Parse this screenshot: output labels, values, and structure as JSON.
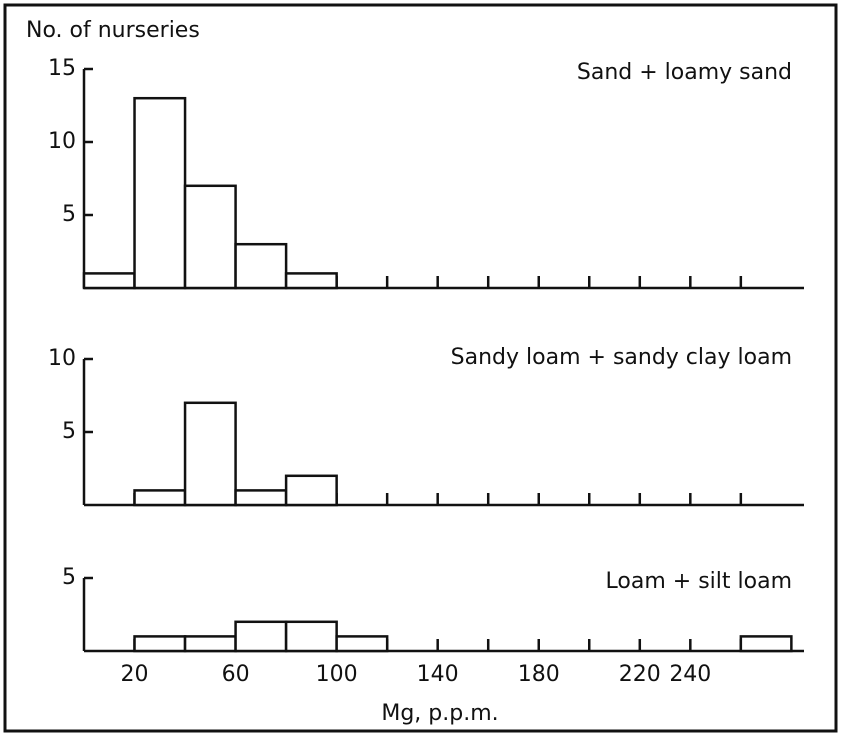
{
  "chart_data": [
    {
      "type": "histogram",
      "title": "Sand + loamy sand",
      "ylabel": "No. of nurseries",
      "bins": [
        0,
        20,
        40,
        60,
        80,
        100,
        120,
        140,
        160,
        180,
        200,
        220,
        240,
        260,
        280
      ],
      "counts": [
        1,
        13,
        7,
        3,
        1,
        0,
        0,
        0,
        0,
        0,
        0,
        0,
        0,
        0
      ],
      "xlim": [
        0,
        285
      ],
      "ylim": [
        0,
        15
      ],
      "yticks": [
        5,
        10,
        15
      ],
      "color": "#ffffff"
    },
    {
      "type": "histogram",
      "title": "Sandy loam + sandy clay loam",
      "bins": [
        0,
        20,
        40,
        60,
        80,
        100,
        120,
        140,
        160,
        180,
        200,
        220,
        240,
        260,
        280
      ],
      "counts": [
        0,
        1,
        7,
        1,
        2,
        0,
        0,
        0,
        0,
        0,
        0,
        0,
        0,
        0
      ],
      "xlim": [
        0,
        285
      ],
      "ylim": [
        0,
        10
      ],
      "yticks": [
        5,
        10
      ],
      "color": "#ffffff"
    },
    {
      "type": "histogram",
      "title": "Loam + silt loam",
      "xlabel": "Mg, p.p.m.",
      "bins": [
        0,
        20,
        40,
        60,
        80,
        100,
        120,
        140,
        160,
        180,
        200,
        220,
        240,
        260,
        280
      ],
      "counts": [
        0,
        1,
        1,
        2,
        2,
        1,
        0,
        0,
        0,
        0,
        0,
        0,
        0,
        1
      ],
      "xlim": [
        0,
        285
      ],
      "ylim": [
        0,
        5
      ],
      "yticks": [
        5
      ],
      "color": "#ffffff",
      "xticks": [
        20,
        60,
        100,
        140,
        180,
        220,
        240
      ],
      "minor_xticks": [
        40,
        80,
        120,
        160,
        200,
        260
      ]
    }
  ]
}
